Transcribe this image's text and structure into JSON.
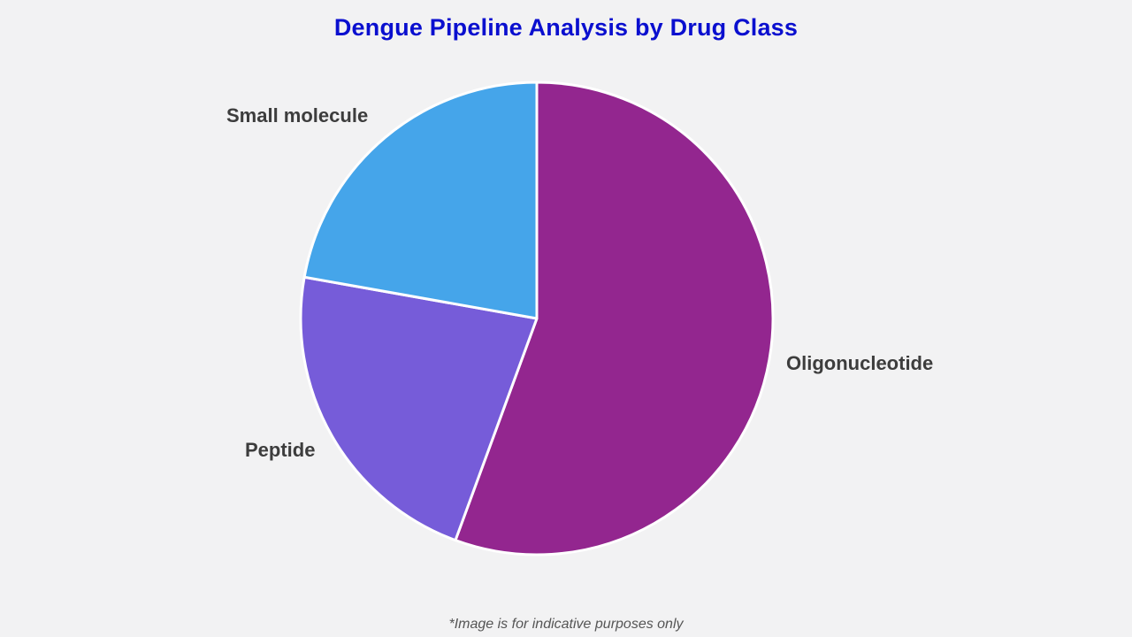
{
  "chart_data": {
    "type": "pie",
    "title": "Dengue Pipeline Analysis by Drug Class",
    "categories": [
      "Oligonucleotide",
      "Peptide",
      "Small molecule"
    ],
    "values": [
      55.6,
      22.2,
      22.2
    ],
    "colors": [
      "#93268f",
      "#765cd9",
      "#45a5ea"
    ],
    "start_angle_deg": 0,
    "direction": "clockwise",
    "legend": "none (direct labels)",
    "footnote": "*Image is for indicative purposes only"
  },
  "labels": {
    "oligonucleotide": "Oligonucleotide",
    "peptide": "Peptide",
    "small_molecule": "Small molecule"
  },
  "colors": {
    "title": "#0a0fcf",
    "background": "#f2f2f3",
    "label": "#3d3d3d"
  }
}
